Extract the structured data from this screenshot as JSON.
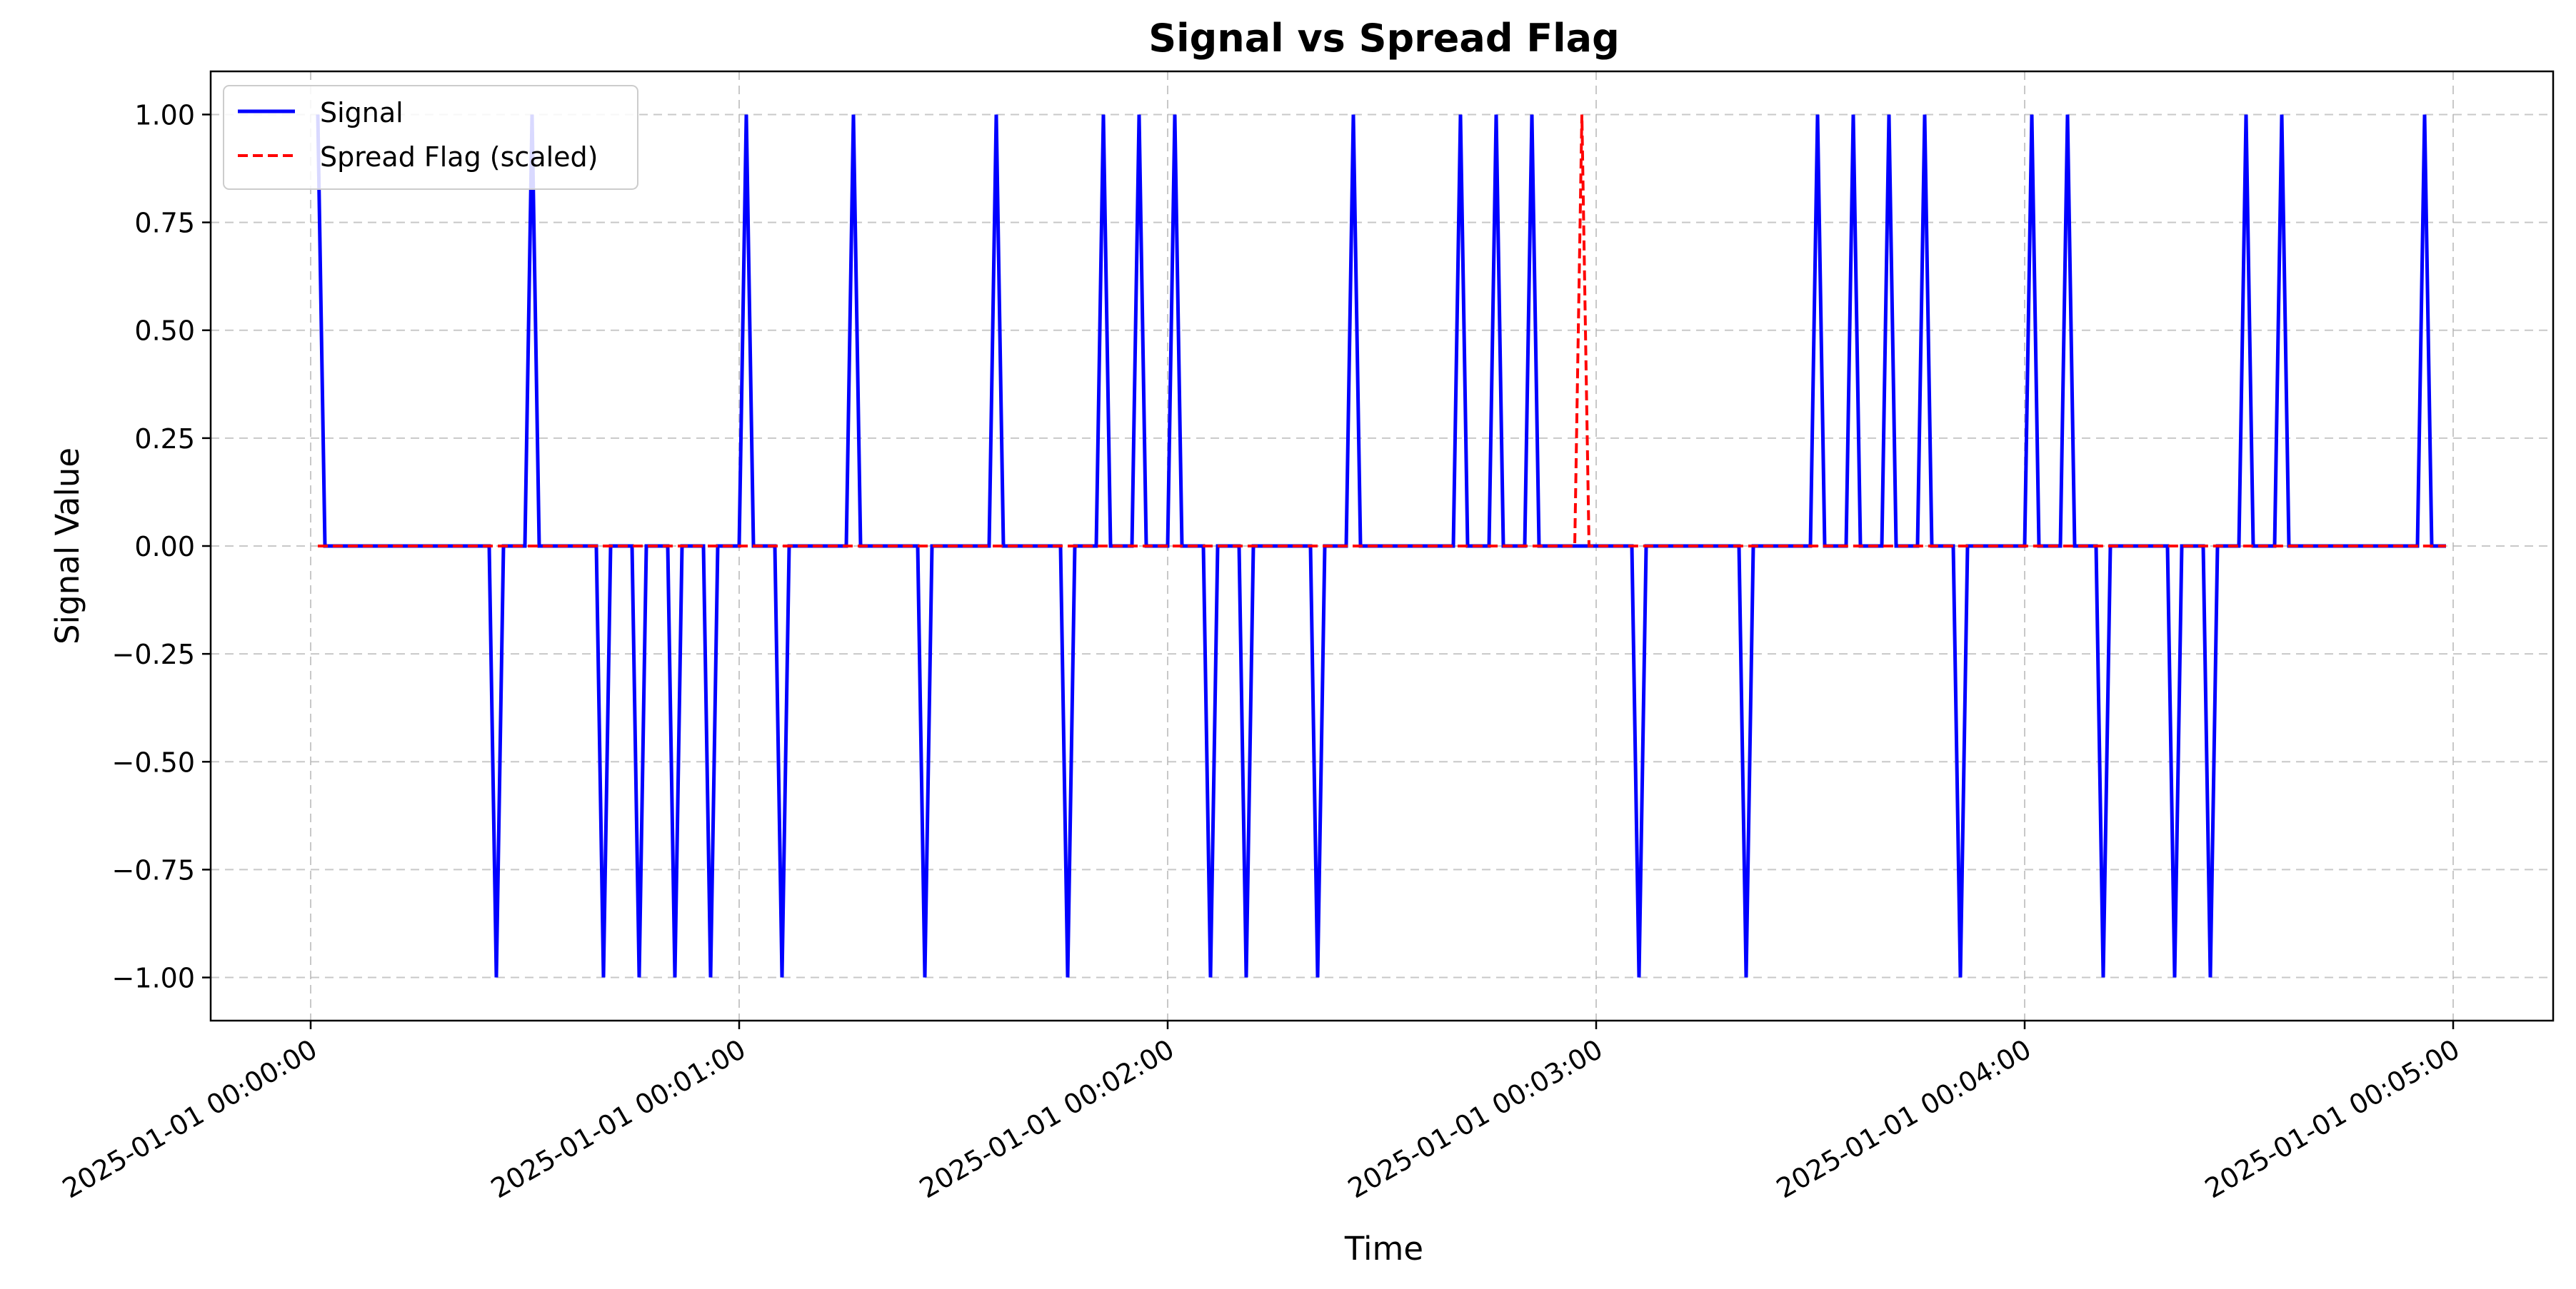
{
  "chart_data": {
    "type": "line",
    "title": "Signal vs Spread Flag",
    "xlabel": "Time",
    "ylabel": "Signal Value",
    "x_is_time": true,
    "x_start": "2025-01-01 00:00:00",
    "x_step_seconds": 1,
    "xlim": [
      "2024-12-31 23:59:46",
      "2025-01-01 00:05:14"
    ],
    "ylim": [
      -1.1,
      1.1
    ],
    "xticks": [
      "2025-01-01 00:00:00",
      "2025-01-01 00:01:00",
      "2025-01-01 00:02:00",
      "2025-01-01 00:03:00",
      "2025-01-01 00:04:00",
      "2025-01-01 00:05:00"
    ],
    "yticks": [
      "1.00",
      "0.75",
      "0.50",
      "0.25",
      "0.00",
      "−0.25",
      "−0.50",
      "−0.75",
      "−1.00"
    ],
    "ytick_values": [
      1.0,
      0.75,
      0.5,
      0.25,
      0.0,
      -0.25,
      -0.5,
      -0.75,
      -1.0
    ],
    "grid": true,
    "legend_position": "upper-left",
    "series": [
      {
        "name": "Signal",
        "color": "#0000ff",
        "style": "solid",
        "points": [
          [
            "2025-01-01 00:00:01",
            1
          ],
          [
            "2025-01-01 00:00:02",
            0
          ],
          [
            "2025-01-01 00:00:25",
            0
          ],
          [
            "2025-01-01 00:00:26",
            -1
          ],
          [
            "2025-01-01 00:00:27",
            0
          ],
          [
            "2025-01-01 00:00:30",
            0
          ],
          [
            "2025-01-01 00:00:31",
            1
          ],
          [
            "2025-01-01 00:00:32",
            0
          ],
          [
            "2025-01-01 00:00:40",
            0
          ],
          [
            "2025-01-01 00:00:41",
            -1
          ],
          [
            "2025-01-01 00:00:42",
            0
          ],
          [
            "2025-01-01 00:00:45",
            0
          ],
          [
            "2025-01-01 00:00:46",
            -1
          ],
          [
            "2025-01-01 00:00:47",
            0
          ],
          [
            "2025-01-01 00:00:50",
            0
          ],
          [
            "2025-01-01 00:00:51",
            -1
          ],
          [
            "2025-01-01 00:00:52",
            0
          ],
          [
            "2025-01-01 00:00:55",
            0
          ],
          [
            "2025-01-01 00:00:56",
            -1
          ],
          [
            "2025-01-01 00:00:57",
            0
          ],
          [
            "2025-01-01 00:01:00",
            0
          ],
          [
            "2025-01-01 00:01:01",
            1
          ],
          [
            "2025-01-01 00:01:02",
            0
          ],
          [
            "2025-01-01 00:01:05",
            0
          ],
          [
            "2025-01-01 00:01:06",
            -1
          ],
          [
            "2025-01-01 00:01:07",
            0
          ],
          [
            "2025-01-01 00:01:15",
            0
          ],
          [
            "2025-01-01 00:01:16",
            1
          ],
          [
            "2025-01-01 00:01:17",
            0
          ],
          [
            "2025-01-01 00:01:25",
            0
          ],
          [
            "2025-01-01 00:01:26",
            -1
          ],
          [
            "2025-01-01 00:01:27",
            0
          ],
          [
            "2025-01-01 00:01:35",
            0
          ],
          [
            "2025-01-01 00:01:36",
            1
          ],
          [
            "2025-01-01 00:01:37",
            0
          ],
          [
            "2025-01-01 00:01:45",
            0
          ],
          [
            "2025-01-01 00:01:46",
            -1
          ],
          [
            "2025-01-01 00:01:47",
            0
          ],
          [
            "2025-01-01 00:01:50",
            0
          ],
          [
            "2025-01-01 00:01:51",
            1
          ],
          [
            "2025-01-01 00:01:52",
            0
          ],
          [
            "2025-01-01 00:01:55",
            0
          ],
          [
            "2025-01-01 00:01:56",
            1
          ],
          [
            "2025-01-01 00:01:57",
            0
          ],
          [
            "2025-01-01 00:02:00",
            0
          ],
          [
            "2025-01-01 00:02:01",
            1
          ],
          [
            "2025-01-01 00:02:02",
            0
          ],
          [
            "2025-01-01 00:02:05",
            0
          ],
          [
            "2025-01-01 00:02:06",
            -1
          ],
          [
            "2025-01-01 00:02:07",
            0
          ],
          [
            "2025-01-01 00:02:10",
            0
          ],
          [
            "2025-01-01 00:02:11",
            -1
          ],
          [
            "2025-01-01 00:02:12",
            0
          ],
          [
            "2025-01-01 00:02:20",
            0
          ],
          [
            "2025-01-01 00:02:21",
            -1
          ],
          [
            "2025-01-01 00:02:22",
            0
          ],
          [
            "2025-01-01 00:02:25",
            0
          ],
          [
            "2025-01-01 00:02:26",
            1
          ],
          [
            "2025-01-01 00:02:27",
            0
          ],
          [
            "2025-01-01 00:02:40",
            0
          ],
          [
            "2025-01-01 00:02:41",
            1
          ],
          [
            "2025-01-01 00:02:42",
            0
          ],
          [
            "2025-01-01 00:02:45",
            0
          ],
          [
            "2025-01-01 00:02:46",
            1
          ],
          [
            "2025-01-01 00:02:47",
            0
          ],
          [
            "2025-01-01 00:02:50",
            0
          ],
          [
            "2025-01-01 00:02:51",
            1
          ],
          [
            "2025-01-01 00:02:52",
            0
          ],
          [
            "2025-01-01 00:03:05",
            0
          ],
          [
            "2025-01-01 00:03:06",
            -1
          ],
          [
            "2025-01-01 00:03:07",
            0
          ],
          [
            "2025-01-01 00:03:20",
            0
          ],
          [
            "2025-01-01 00:03:21",
            -1
          ],
          [
            "2025-01-01 00:03:22",
            0
          ],
          [
            "2025-01-01 00:03:30",
            0
          ],
          [
            "2025-01-01 00:03:31",
            1
          ],
          [
            "2025-01-01 00:03:32",
            0
          ],
          [
            "2025-01-01 00:03:35",
            0
          ],
          [
            "2025-01-01 00:03:36",
            1
          ],
          [
            "2025-01-01 00:03:37",
            0
          ],
          [
            "2025-01-01 00:03:40",
            0
          ],
          [
            "2025-01-01 00:03:41",
            1
          ],
          [
            "2025-01-01 00:03:42",
            0
          ],
          [
            "2025-01-01 00:03:45",
            0
          ],
          [
            "2025-01-01 00:03:46",
            1
          ],
          [
            "2025-01-01 00:03:47",
            0
          ],
          [
            "2025-01-01 00:03:50",
            0
          ],
          [
            "2025-01-01 00:03:51",
            -1
          ],
          [
            "2025-01-01 00:03:52",
            0
          ],
          [
            "2025-01-01 00:04:00",
            0
          ],
          [
            "2025-01-01 00:04:01",
            1
          ],
          [
            "2025-01-01 00:04:02",
            0
          ],
          [
            "2025-01-01 00:04:05",
            0
          ],
          [
            "2025-01-01 00:04:06",
            1
          ],
          [
            "2025-01-01 00:04:07",
            0
          ],
          [
            "2025-01-01 00:04:10",
            0
          ],
          [
            "2025-01-01 00:04:11",
            -1
          ],
          [
            "2025-01-01 00:04:12",
            0
          ],
          [
            "2025-01-01 00:04:20",
            0
          ],
          [
            "2025-01-01 00:04:21",
            -1
          ],
          [
            "2025-01-01 00:04:22",
            0
          ],
          [
            "2025-01-01 00:04:25",
            0
          ],
          [
            "2025-01-01 00:04:26",
            -1
          ],
          [
            "2025-01-01 00:04:27",
            0
          ],
          [
            "2025-01-01 00:04:30",
            0
          ],
          [
            "2025-01-01 00:04:31",
            1
          ],
          [
            "2025-01-01 00:04:32",
            0
          ],
          [
            "2025-01-01 00:04:35",
            0
          ],
          [
            "2025-01-01 00:04:36",
            1
          ],
          [
            "2025-01-01 00:04:37",
            0
          ],
          [
            "2025-01-01 00:04:55",
            0
          ],
          [
            "2025-01-01 00:04:56",
            1
          ],
          [
            "2025-01-01 00:04:57",
            0
          ],
          [
            "2025-01-01 00:04:59",
            0
          ]
        ]
      },
      {
        "name": "Spread Flag (scaled)",
        "color": "#ff0000",
        "style": "dashed",
        "points": [
          [
            "2025-01-01 00:00:01",
            0
          ],
          [
            "2025-01-01 00:02:57",
            0
          ],
          [
            "2025-01-01 00:02:58",
            1
          ],
          [
            "2025-01-01 00:02:59",
            0
          ],
          [
            "2025-01-01 00:04:59",
            0
          ]
        ]
      }
    ]
  }
}
